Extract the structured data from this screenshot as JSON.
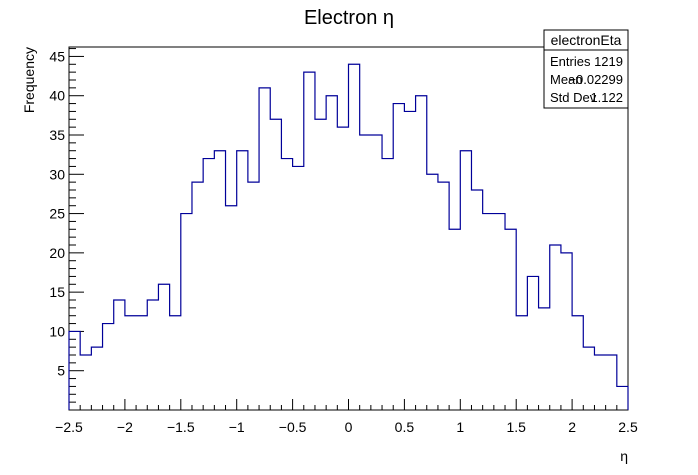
{
  "chart_data": {
    "type": "bar",
    "title": "Electron η",
    "xlabel": "η",
    "ylabel": "Frequency",
    "xlim": [
      -2.5,
      2.5
    ],
    "ylim": [
      0,
      46.2
    ],
    "bin_edges_range": [
      -2.5,
      2.5
    ],
    "bin_count": 50,
    "values": [
      10,
      7,
      8,
      11,
      14,
      12,
      12,
      14,
      16,
      12,
      25,
      29,
      32,
      33,
      26,
      33,
      29,
      41,
      37,
      32,
      31,
      43,
      37,
      40,
      36,
      44,
      35,
      35,
      32,
      39,
      38,
      40,
      30,
      29,
      23,
      33,
      28,
      25,
      25,
      23,
      12,
      17,
      13,
      21,
      20,
      12,
      8,
      7,
      7,
      3
    ],
    "x_ticks": [
      "−2.5",
      "−2",
      "−1.5",
      "−1",
      "−0.5",
      "0",
      "0.5",
      "1",
      "1.5",
      "2",
      "2.5"
    ],
    "x_tick_values": [
      -2.5,
      -2,
      -1.5,
      -1,
      -0.5,
      0,
      0.5,
      1,
      1.5,
      2,
      2.5
    ],
    "y_ticks": [
      "5",
      "10",
      "15",
      "20",
      "25",
      "30",
      "35",
      "40",
      "45"
    ],
    "y_tick_values": [
      5,
      10,
      15,
      20,
      25,
      30,
      35,
      40,
      45
    ],
    "line_color": "#000099",
    "grid": false,
    "legend": "none"
  },
  "stats_box": {
    "title": "electronEta",
    "rows": [
      {
        "label": "Entries",
        "value": "1219"
      },
      {
        "label": "Mean",
        "value": "−0.02299"
      },
      {
        "label": "Std Dev",
        "value": "1.122"
      }
    ]
  }
}
